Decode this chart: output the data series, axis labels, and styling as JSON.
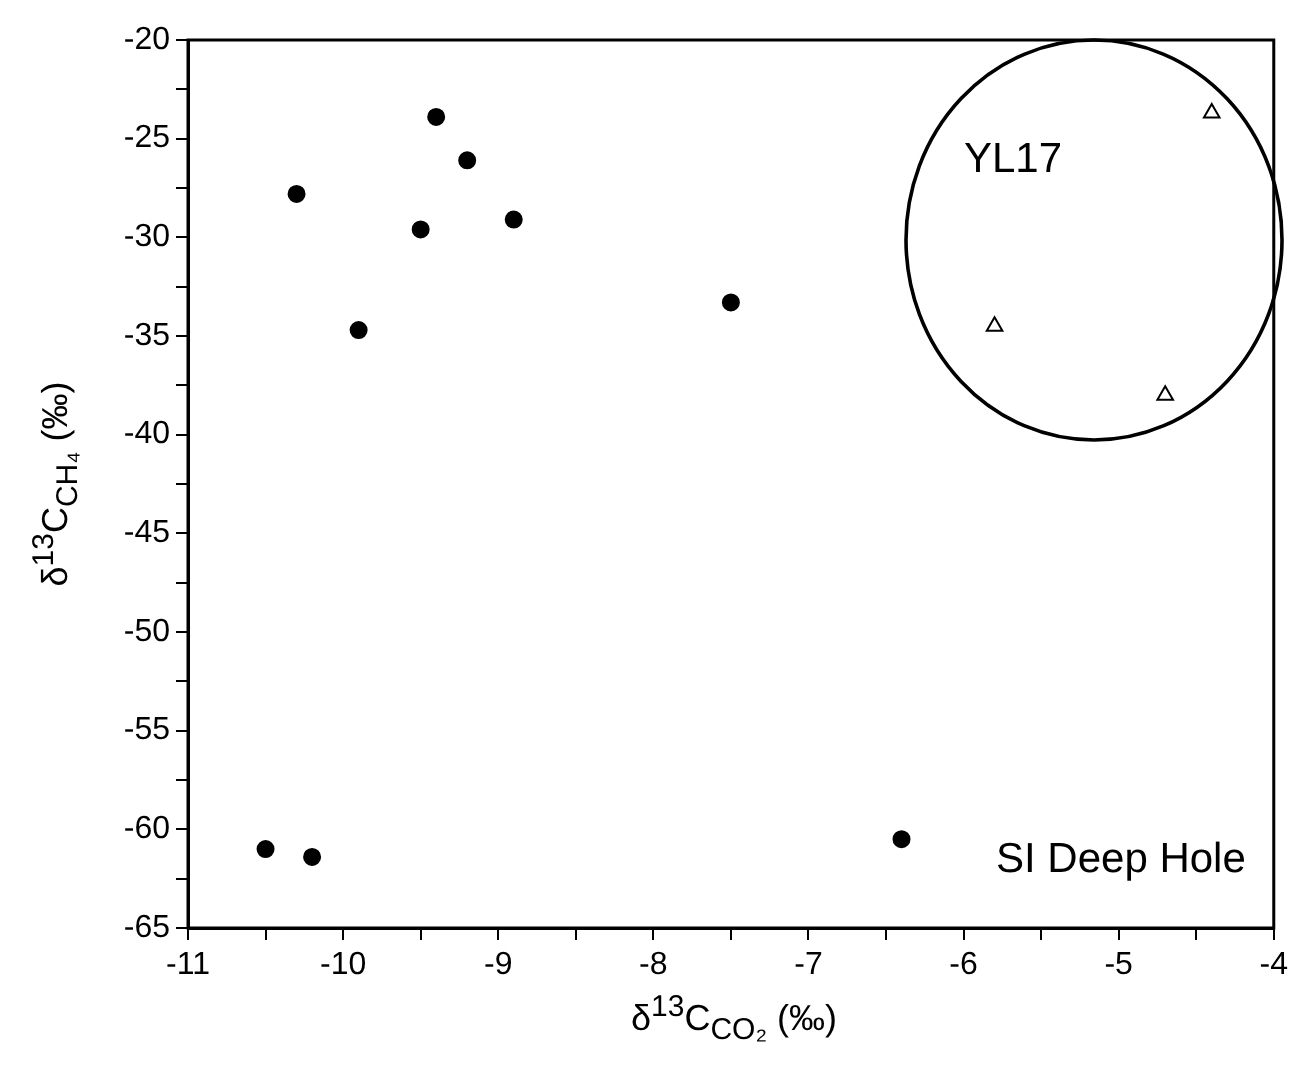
{
  "chart_data": {
    "type": "scatter",
    "xlabel": "δ$^{13}$C$_{CO₂}$ (‰)",
    "ylabel": "δ$^{13}$C$_{CH₄}$ (‰)",
    "xlim": [
      -11,
      -4
    ],
    "ylim": [
      -65,
      -20
    ],
    "xticks": [
      -11,
      {
        "value": -10.5,
        "label": null
      },
      -10,
      {
        "value": -9.5,
        "label": null
      },
      -9,
      {
        "value": -8.5,
        "label": null
      },
      -8,
      {
        "value": -7.5,
        "label": null
      },
      -7,
      {
        "value": -6.5,
        "label": null
      },
      -6,
      {
        "value": -5.5,
        "label": null
      },
      -5,
      {
        "value": -4.5,
        "label": null
      },
      -4
    ],
    "yticks": [
      -65,
      {
        "value": -62.5,
        "label": null
      },
      -60,
      {
        "value": -57.5,
        "label": null
      },
      -55,
      {
        "value": -52.5,
        "label": null
      },
      -50,
      {
        "value": -47.5,
        "label": null
      },
      -45,
      {
        "value": -42.5,
        "label": null
      },
      -40,
      {
        "value": -37.5,
        "label": null
      },
      -35,
      {
        "value": -32.5,
        "label": null
      },
      -30,
      {
        "value": -27.5,
        "label": null
      },
      -25,
      {
        "value": -22.5,
        "label": null
      },
      -20
    ],
    "annotations": [
      "YL17",
      "SI Deep Hole"
    ],
    "series": [
      {
        "color": "#000000",
        "marker": "circle",
        "x": [
          -10.5,
          -10.2,
          -10.3,
          -9.9,
          -9.5,
          -9.4,
          -9.2,
          -8.9,
          -7.5,
          -6.4
        ],
        "values": [
          -61,
          -61.4,
          -27.8,
          -34.7,
          -29.6,
          -23.9,
          -26.1,
          -29.1,
          -33.3,
          -60.5
        ]
      },
      {
        "color": "#000000",
        "marker": "triangle",
        "x": [
          -5.8,
          -4.4,
          -4.7
        ],
        "values": [
          -34.5,
          -23.7,
          -38.0
        ]
      }
    ]
  }
}
